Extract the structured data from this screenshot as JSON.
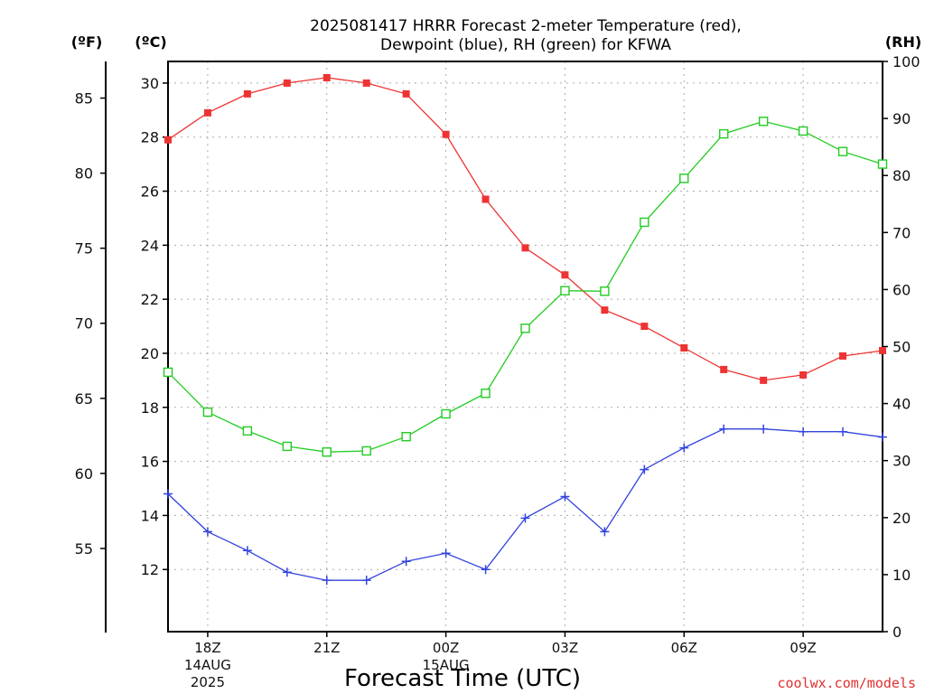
{
  "chart_data": {
    "type": "line",
    "title": [
      "2025081417 HRRR Forecast 2-meter Temperature (red),",
      "Dewpoint (blue), RH (green) for KFWA"
    ],
    "xlabel": "Forecast Time (UTC)",
    "credit": "coolwx.com/models",
    "unit_labels": {
      "fahrenheit": "(ºF)",
      "celsius": "(ºC)",
      "rh": "(RH)"
    },
    "x_hours": [
      17,
      18,
      19,
      20,
      21,
      22,
      23,
      24,
      25,
      26,
      27,
      28,
      29,
      30,
      31,
      32,
      33,
      34,
      35
    ],
    "x_ticks": [
      {
        "hour": 18,
        "lines": [
          "18Z",
          "14AUG",
          "2025"
        ]
      },
      {
        "hour": 21,
        "lines": [
          "21Z"
        ]
      },
      {
        "hour": 24,
        "lines": [
          "00Z",
          "15AUG"
        ]
      },
      {
        "hour": 27,
        "lines": [
          "03Z"
        ]
      },
      {
        "hour": 30,
        "lines": [
          "06Z"
        ]
      },
      {
        "hour": 33,
        "lines": [
          "09Z"
        ]
      }
    ],
    "celsius_axis": {
      "ylim": [
        9.7,
        30.8
      ],
      "ticks": [
        12,
        14,
        16,
        18,
        20,
        22,
        24,
        26,
        28,
        30
      ]
    },
    "fahrenheit_axis": {
      "ylim": [
        49.46,
        87.44
      ],
      "ticks": [
        55,
        60,
        65,
        70,
        75,
        80,
        85
      ]
    },
    "rh_axis": {
      "ylim": [
        0,
        100
      ],
      "ticks": [
        0,
        10,
        20,
        30,
        40,
        50,
        60,
        70,
        80,
        90,
        100
      ]
    },
    "series": [
      {
        "key": "temperature",
        "axis": "celsius",
        "color": "#ee3333",
        "marker": "filled-square",
        "values": [
          27.9,
          28.9,
          29.6,
          30.0,
          30.2,
          30.0,
          29.6,
          28.1,
          25.7,
          23.9,
          22.9,
          21.6,
          21.0,
          20.2,
          19.4,
          19.0,
          19.2,
          19.9,
          20.1
        ]
      },
      {
        "key": "dewpoint",
        "axis": "celsius",
        "color": "#3344dd",
        "marker": "plus",
        "values": [
          14.8,
          13.4,
          12.7,
          11.9,
          11.6,
          11.6,
          12.3,
          12.6,
          12.0,
          13.9,
          14.7,
          13.4,
          15.7,
          16.5,
          17.2,
          17.2,
          17.1,
          17.1,
          16.9
        ]
      },
      {
        "key": "rh",
        "axis": "rh",
        "color": "#22cc22",
        "marker": "open-square",
        "values": [
          45.5,
          38.5,
          35.2,
          32.5,
          31.5,
          31.7,
          34.2,
          38.2,
          41.8,
          53.2,
          59.8,
          59.7,
          71.8,
          79.5,
          87.3,
          89.5,
          87.8,
          84.2,
          82.0
        ]
      }
    ]
  }
}
